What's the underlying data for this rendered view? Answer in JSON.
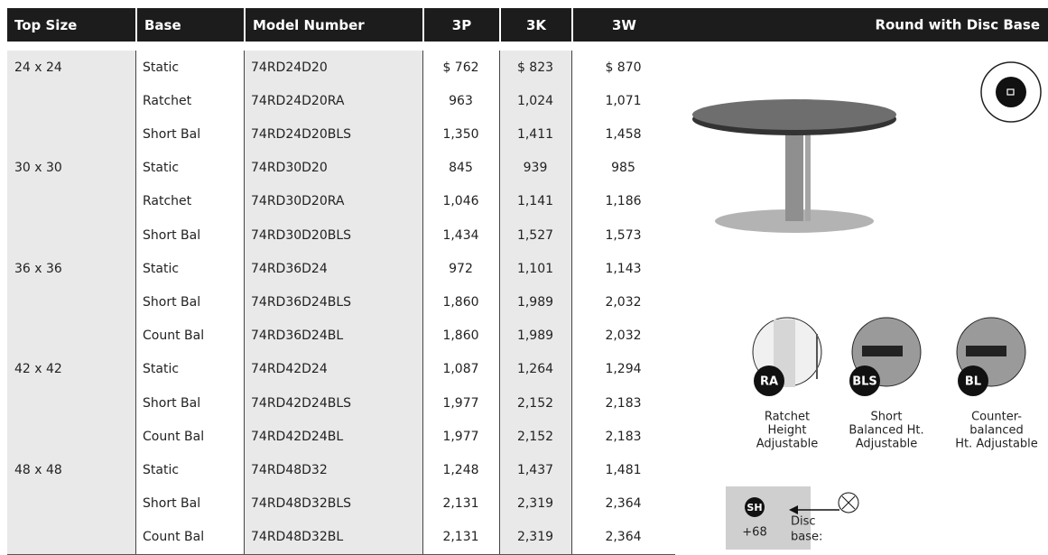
{
  "header": {
    "columns": [
      "Top Size",
      "Base",
      "Model Number",
      "3P",
      "3K",
      "3W"
    ],
    "panel_title": "Round with Disc Base"
  },
  "table": {
    "groups": [
      {
        "size": "24 x 24",
        "rows": [
          [
            "Static",
            "74RD24D20",
            "$ 762",
            "$ 823",
            "$ 870"
          ],
          [
            "Ratchet",
            "74RD24D20RA",
            "963",
            "1,024",
            "1,071"
          ],
          [
            "Short Bal",
            "74RD24D20BLS",
            "1,350",
            "1,411",
            "1,458"
          ]
        ]
      },
      {
        "size": "30 x 30",
        "rows": [
          [
            "Static",
            "74RD30D20",
            "845",
            "939",
            "985"
          ],
          [
            "Ratchet",
            "74RD30D20RA",
            "1,046",
            "1,141",
            "1,186"
          ],
          [
            "Short Bal",
            "74RD30D20BLS",
            "1,434",
            "1,527",
            "1,573"
          ]
        ]
      },
      {
        "size": "36 x 36",
        "rows": [
          [
            "Static",
            "74RD36D24",
            "972",
            "1,101",
            "1,143"
          ],
          [
            "Short Bal",
            "74RD36D24BLS",
            "1,860",
            "1,989",
            "2,032"
          ],
          [
            "Count Bal",
            "74RD36D24BL",
            "1,860",
            "1,989",
            "2,032"
          ]
        ]
      },
      {
        "size": "42 x 42",
        "rows": [
          [
            "Static",
            "74RD42D24",
            "1,087",
            "1,264",
            "1,294"
          ],
          [
            "Short Bal",
            "74RD42D24BLS",
            "1,977",
            "2,152",
            "2,183"
          ],
          [
            "Count Bal",
            "74RD42D24BL",
            "1,977",
            "2,152",
            "2,183"
          ]
        ]
      },
      {
        "size": "48 x 48",
        "rows": [
          [
            "Static",
            "74RD48D32",
            "1,248",
            "1,437",
            "1,481"
          ],
          [
            "Short Bal",
            "74RD48D32BLS",
            "2,131",
            "2,319",
            "2,364"
          ],
          [
            "Count Bal",
            "74RD48D32BL",
            "2,131",
            "2,319",
            "2,364"
          ]
        ]
      }
    ]
  },
  "options": [
    {
      "code": "RA",
      "caption": [
        "Ratchet",
        "Height",
        "Adjustable"
      ]
    },
    {
      "code": "BLS",
      "caption": [
        "Short",
        "Balanced Ht.",
        "Adjustable"
      ]
    },
    {
      "code": "BL",
      "caption": [
        "Counter-",
        "balanced",
        "Ht. Adjustable"
      ]
    }
  ],
  "add_on": {
    "code": "SH",
    "price": "+68",
    "label": [
      "Disc",
      "base:"
    ]
  }
}
